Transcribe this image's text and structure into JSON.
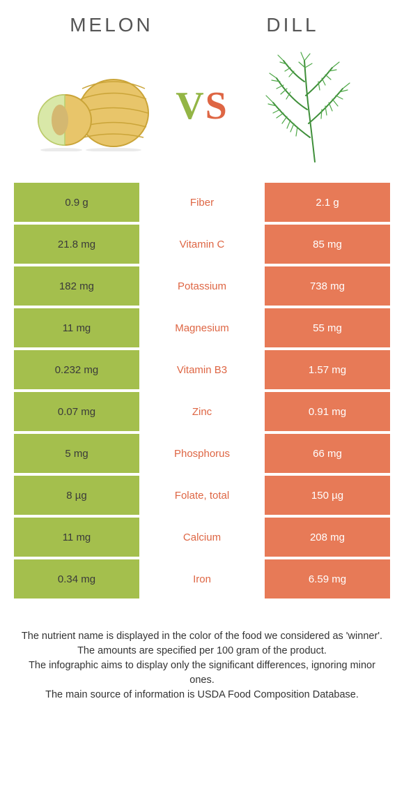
{
  "colors": {
    "left_bg": "#a4bf4d",
    "right_bg": "#e77a57",
    "mid_winner_left": "#93b545",
    "mid_winner_right": "#de6644",
    "title_text": "#555555",
    "footer_text": "#333333",
    "left_cell_text": "#3a3a3a",
    "right_cell_text": "#ffffff"
  },
  "titles": {
    "left": "MELON",
    "right": "DILL"
  },
  "vs": {
    "v": "V",
    "s": "S"
  },
  "rows": [
    {
      "left": "0.9 g",
      "label": "Fiber",
      "right": "2.1 g",
      "winner": "right"
    },
    {
      "left": "21.8 mg",
      "label": "Vitamin C",
      "right": "85 mg",
      "winner": "right"
    },
    {
      "left": "182 mg",
      "label": "Potassium",
      "right": "738 mg",
      "winner": "right"
    },
    {
      "left": "11 mg",
      "label": "Magnesium",
      "right": "55 mg",
      "winner": "right"
    },
    {
      "left": "0.232 mg",
      "label": "Vitamin B3",
      "right": "1.57 mg",
      "winner": "right"
    },
    {
      "left": "0.07 mg",
      "label": "Zinc",
      "right": "0.91 mg",
      "winner": "right"
    },
    {
      "left": "5 mg",
      "label": "Phosphorus",
      "right": "66 mg",
      "winner": "right"
    },
    {
      "left": "8 µg",
      "label": "Folate, total",
      "right": "150 µg",
      "winner": "right"
    },
    {
      "left": "11 mg",
      "label": "Calcium",
      "right": "208 mg",
      "winner": "right"
    },
    {
      "left": "0.34 mg",
      "label": "Iron",
      "right": "6.59 mg",
      "winner": "right"
    }
  ],
  "footer": {
    "line1": "The nutrient name is displayed in the color of the food we considered as 'winner'.",
    "line2": "The amounts are specified per 100 gram of the product.",
    "line3": "The infographic aims to display only the significant differences, ignoring minor ones.",
    "line4": "The main source of information is USDA Food Composition Database."
  }
}
